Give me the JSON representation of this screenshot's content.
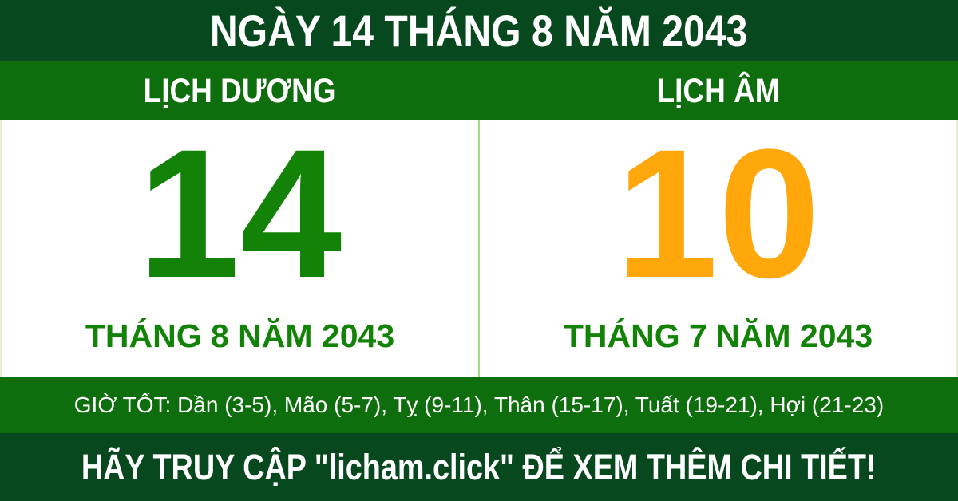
{
  "title_bar": {
    "text": "NGÀY 14 THÁNG 8 NĂM 2043"
  },
  "calendar": {
    "solar": {
      "header": "LỊCH DƯƠNG",
      "day": "14",
      "month_year": "THÁNG 8 NĂM 2043"
    },
    "lunar": {
      "header": "LỊCH ÂM",
      "day": "10",
      "month_year": "THÁNG 7 NĂM 2043"
    }
  },
  "good_hours": {
    "text": "GIỜ TỐT: Dần (3-5), Mão (5-7), Tỵ (9-11), Thân (15-17), Tuất (19-21), Hợi (21-23)"
  },
  "footer": {
    "text": "HÃY TRUY CẬP \"licham.click\" ĐỂ XEM THÊM CHI TIẾT!"
  },
  "colors": {
    "dark_green": "#07481F",
    "medium_green": "#0E6E0D",
    "day_green": "#128307",
    "day_orange": "#FFA70B",
    "divider_light_green": "#A6D87C",
    "panel_border_light_green": "#E4F1D2",
    "text_white": "#FFFFFF"
  }
}
